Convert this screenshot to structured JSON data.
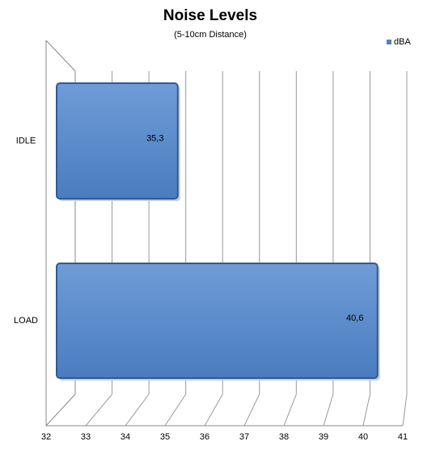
{
  "chart_data": {
    "type": "bar",
    "orientation": "horizontal",
    "title": "Noise Levels",
    "subtitle": "(5-10cm Distance)",
    "categories": [
      "IDLE",
      "LOAD"
    ],
    "series": [
      {
        "name": "dBA",
        "color": "#4f81bd",
        "values": [
          35.3,
          40.6
        ],
        "value_labels": [
          "35,3",
          "40,6"
        ]
      }
    ],
    "xlim": [
      32,
      41
    ],
    "xticks": [
      32,
      33,
      34,
      35,
      36,
      37,
      38,
      39,
      40,
      41
    ],
    "grid": true,
    "legend": "top-right"
  }
}
